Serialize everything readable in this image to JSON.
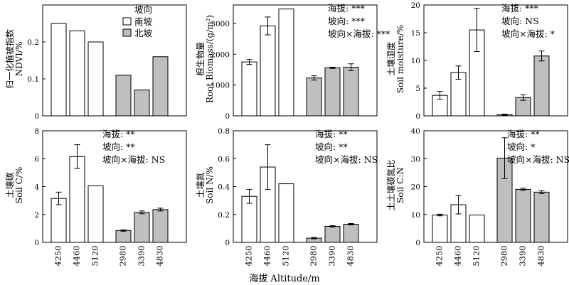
{
  "figure": {
    "xlabel": "海拔 Altitude/m",
    "legend": {
      "title": "坡向",
      "items": [
        {
          "label": "南坡",
          "color": "#ffffff"
        },
        {
          "label": "北坡",
          "color": "#bfbfbf"
        }
      ]
    },
    "series_colors": {
      "south": "#ffffff",
      "north": "#bfbfbf"
    }
  },
  "chart_data": [
    {
      "type": "bar",
      "ylabel_cn": "归一化植被指数",
      "ylabel_en": "NDVI/%",
      "categories": [
        "4250",
        "4460",
        "5120",
        "2980",
        "3390",
        "4830"
      ],
      "values": [
        0.25,
        0.23,
        0.2,
        0.11,
        0.07,
        0.16
      ],
      "errors": [
        0,
        0,
        0,
        0,
        0,
        0
      ],
      "ylim": [
        0,
        0.3
      ],
      "yticks": [
        0,
        0.1,
        0.2
      ],
      "ytick_labels": [
        "0",
        "0.1",
        "0.2"
      ],
      "stats": []
    },
    {
      "type": "bar",
      "ylabel_cn": "根生物量",
      "ylabel_en": "Root Biomass/(g/m²)",
      "categories": [
        "4250",
        "4460",
        "5120",
        "2980",
        "3390",
        "4830"
      ],
      "values": [
        1750,
        2920,
        3470,
        1230,
        1560,
        1580
      ],
      "errors": [
        80,
        290,
        0,
        70,
        20,
        110
      ],
      "ylim": [
        0,
        3600
      ],
      "yticks": [
        0,
        1000,
        2000,
        3000
      ],
      "ytick_labels": [
        "0",
        "1000",
        "2000",
        "3000"
      ],
      "stats": [
        "海拔: ***",
        "坡向: ***",
        "坡向×海拔: ***"
      ]
    },
    {
      "type": "bar",
      "ylabel_cn": "土壤湿度",
      "ylabel_en": "Soil moisture/%",
      "categories": [
        "4250",
        "4460",
        "5120",
        "2980",
        "3390",
        "4830"
      ],
      "values": [
        3.7,
        7.8,
        15.5,
        0.2,
        3.3,
        10.8
      ],
      "errors": [
        0.7,
        1.2,
        3.9,
        0.1,
        0.5,
        0.9
      ],
      "ylim": [
        0,
        20
      ],
      "yticks": [
        0,
        5,
        10,
        15,
        20
      ],
      "ytick_labels": [
        "0",
        "5",
        "10",
        "15",
        "20"
      ],
      "stats": [
        "海拔: ***",
        "坡向: NS",
        "坡向×海拔: *"
      ]
    },
    {
      "type": "bar",
      "ylabel_cn": "土壤碳",
      "ylabel_en": "Soil C/%",
      "categories": [
        "4250",
        "4460",
        "5120",
        "2980",
        "3390",
        "4830"
      ],
      "values": [
        3.15,
        6.15,
        4.05,
        0.85,
        2.15,
        2.35
      ],
      "errors": [
        0.45,
        0.85,
        0,
        0.05,
        0.1,
        0.1
      ],
      "ylim": [
        0,
        8
      ],
      "yticks": [
        0,
        2,
        4,
        6,
        8
      ],
      "ytick_labels": [
        "0",
        "2",
        "4",
        "6",
        "8"
      ],
      "stats": [
        "海拔: **",
        "坡向: **",
        "坡向×海拔: NS"
      ]
    },
    {
      "type": "bar",
      "ylabel_cn": "土壤氮",
      "ylabel_en": "Soil N/%",
      "categories": [
        "4250",
        "4460",
        "5120",
        "2980",
        "3390",
        "4830"
      ],
      "values": [
        0.33,
        0.54,
        0.42,
        0.03,
        0.115,
        0.13
      ],
      "errors": [
        0.05,
        0.16,
        0,
        0.005,
        0.005,
        0.005
      ],
      "ylim": [
        0,
        0.8
      ],
      "yticks": [
        0,
        0.2,
        0.4,
        0.6,
        0.8
      ],
      "ytick_labels": [
        "0",
        "0.2",
        "0.4",
        "0.6",
        "0.8"
      ],
      "stats": [
        "海拔: **",
        "坡向: **",
        "坡向×海拔: NS"
      ]
    },
    {
      "type": "bar",
      "ylabel_cn": "土土壤碳氮比",
      "ylabel_en": "Soil C:N",
      "categories": [
        "4250",
        "4460",
        "5120",
        "2980",
        "3390",
        "4830"
      ],
      "values": [
        9.8,
        13.5,
        9.8,
        30.2,
        19.0,
        18.0
      ],
      "errors": [
        0.3,
        3.3,
        0,
        7.3,
        0.4,
        0.5
      ],
      "ylim": [
        0,
        40
      ],
      "yticks": [
        0,
        10,
        20,
        30,
        40
      ],
      "ytick_labels": [
        "0",
        "10",
        "20",
        "30",
        "40"
      ],
      "stats": [
        "海拔: **",
        "坡向: *",
        "坡向×海拔: NS"
      ]
    }
  ]
}
